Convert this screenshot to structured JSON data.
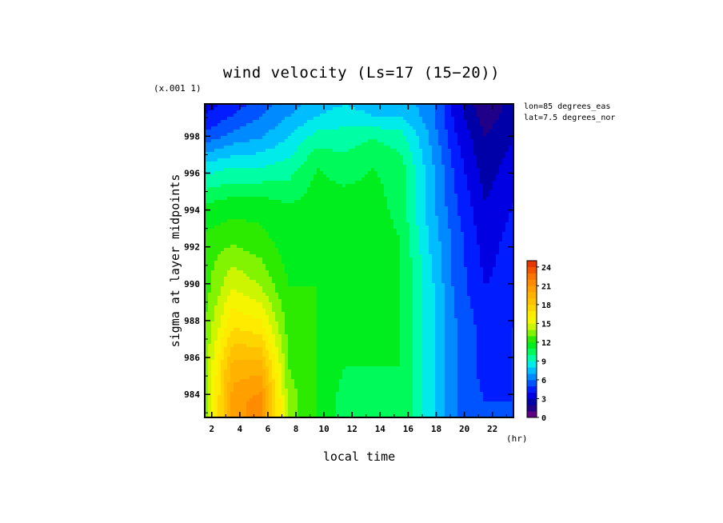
{
  "chart_data": {
    "type": "heatmap",
    "title": "wind velocity (Ls=17 (15−20))",
    "xlabel": "local time",
    "x_unit": "(hr)",
    "ylabel": "sigma at layer midpoints",
    "y_scale_note": "(x.001 1)",
    "annotations": [
      "lon=85 degrees_eas",
      "lat=7.5 degrees_nor"
    ],
    "xlim": [
      1.5,
      23.5
    ],
    "ylim": [
      999.75,
      982.75
    ],
    "x_ticks": [
      2,
      4,
      6,
      8,
      10,
      12,
      14,
      16,
      18,
      20,
      22
    ],
    "y_ticks": [
      984,
      986,
      988,
      990,
      992,
      994,
      996,
      998
    ],
    "x": [
      1.5,
      3.5,
      5.5,
      7.5,
      9.5,
      11.5,
      13.5,
      15.5,
      17.5,
      19.5,
      21.5,
      23.5
    ],
    "y": [
      982.75,
      983.6,
      985.5,
      987.6,
      989.8,
      992.1,
      994.3,
      996.3,
      997.9,
      999.1,
      999.75
    ],
    "z": [
      [
        13.5,
        20.5,
        21.5,
        13.5,
        12,
        10.5,
        10.5,
        11,
        8.5,
        6,
        5,
        5
      ],
      [
        13.5,
        20.5,
        21.5,
        13.5,
        12,
        10.5,
        10.5,
        11,
        8.5,
        6,
        5,
        5
      ],
      [
        13.5,
        19.5,
        19.5,
        13,
        12,
        11,
        11,
        11,
        8.5,
        6,
        4.5,
        5
      ],
      [
        13,
        17,
        16.5,
        12.5,
        12,
        11,
        11.5,
        11,
        8.5,
        6,
        4.5,
        5
      ],
      [
        12.5,
        15,
        14,
        12,
        12,
        11.5,
        11.5,
        11,
        8.5,
        5.5,
        4,
        4.5
      ],
      [
        12.5,
        13,
        12.5,
        11.5,
        12,
        11.5,
        12,
        11,
        8,
        5.5,
        3.5,
        4.5
      ],
      [
        11,
        11.5,
        11.5,
        11,
        11.5,
        11.5,
        11.5,
        10.5,
        7.5,
        5,
        3,
        4
      ],
      [
        8.5,
        9,
        9,
        9.5,
        11,
        10.5,
        11,
        10.5,
        7.5,
        4.5,
        2.5,
        3.5
      ],
      [
        5.5,
        6.5,
        7,
        8,
        9.5,
        9.5,
        10,
        9.5,
        7,
        4,
        2,
        3
      ],
      [
        4,
        5,
        6,
        7,
        8,
        8.5,
        8,
        8,
        6.5,
        3.5,
        1.5,
        2.5
      ],
      [
        3.5,
        4.5,
        5.5,
        6.5,
        7.5,
        8,
        7.5,
        7.5,
        6.5,
        3.5,
        1,
        2.5
      ]
    ],
    "colorbar": {
      "labels": [
        "24",
        "21",
        "18",
        "15",
        "12",
        "9",
        "6",
        "3",
        "0"
      ],
      "values": [
        24,
        21,
        18,
        15,
        12,
        9,
        6,
        3,
        0
      ],
      "min": 0,
      "max": 25,
      "step": 1
    }
  }
}
